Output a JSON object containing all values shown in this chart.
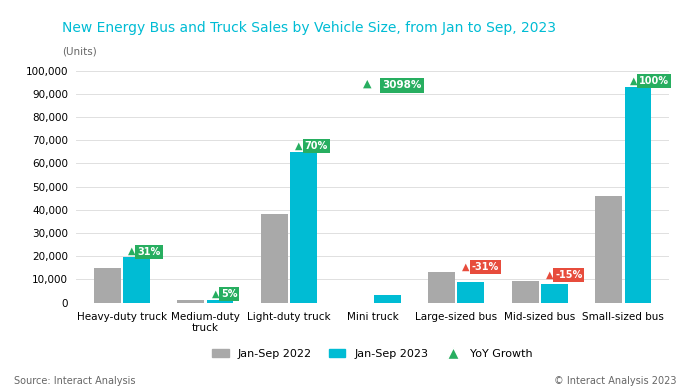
{
  "title": "New Energy Bus and Truck Sales by Vehicle Size, from Jan to Sep, 2023",
  "ylabel": "(Units)",
  "categories": [
    "Heavy-duty truck",
    "Medium-duty\ntruck",
    "Light-duty truck",
    "Mini truck",
    "Large-sized bus",
    "Mid-sized bus",
    "Small-sized bus"
  ],
  "values_2022": [
    15000,
    1000,
    38000,
    0,
    13000,
    9500,
    46000
  ],
  "values_2023": [
    19500,
    1100,
    65000,
    3500,
    9000,
    8000,
    93000
  ],
  "yoy_growth": [
    31,
    5,
    70,
    3098,
    -31,
    -15,
    100
  ],
  "yoy_positive": [
    true,
    true,
    true,
    true,
    false,
    false,
    true
  ],
  "bar_color_2022": "#a9a9a9",
  "bar_color_2023": "#00bcd4",
  "growth_color_pos": "#27ae60",
  "growth_color_neg": "#e74c3c",
  "title_color": "#00bcd4",
  "ylim": [
    0,
    102000
  ],
  "yticks": [
    0,
    10000,
    20000,
    30000,
    40000,
    50000,
    60000,
    70000,
    80000,
    90000,
    100000
  ],
  "source_text": "Source: Interact Analysis",
  "copyright_text": "© Interact Analysis 2023",
  "background_color": "#ffffff"
}
